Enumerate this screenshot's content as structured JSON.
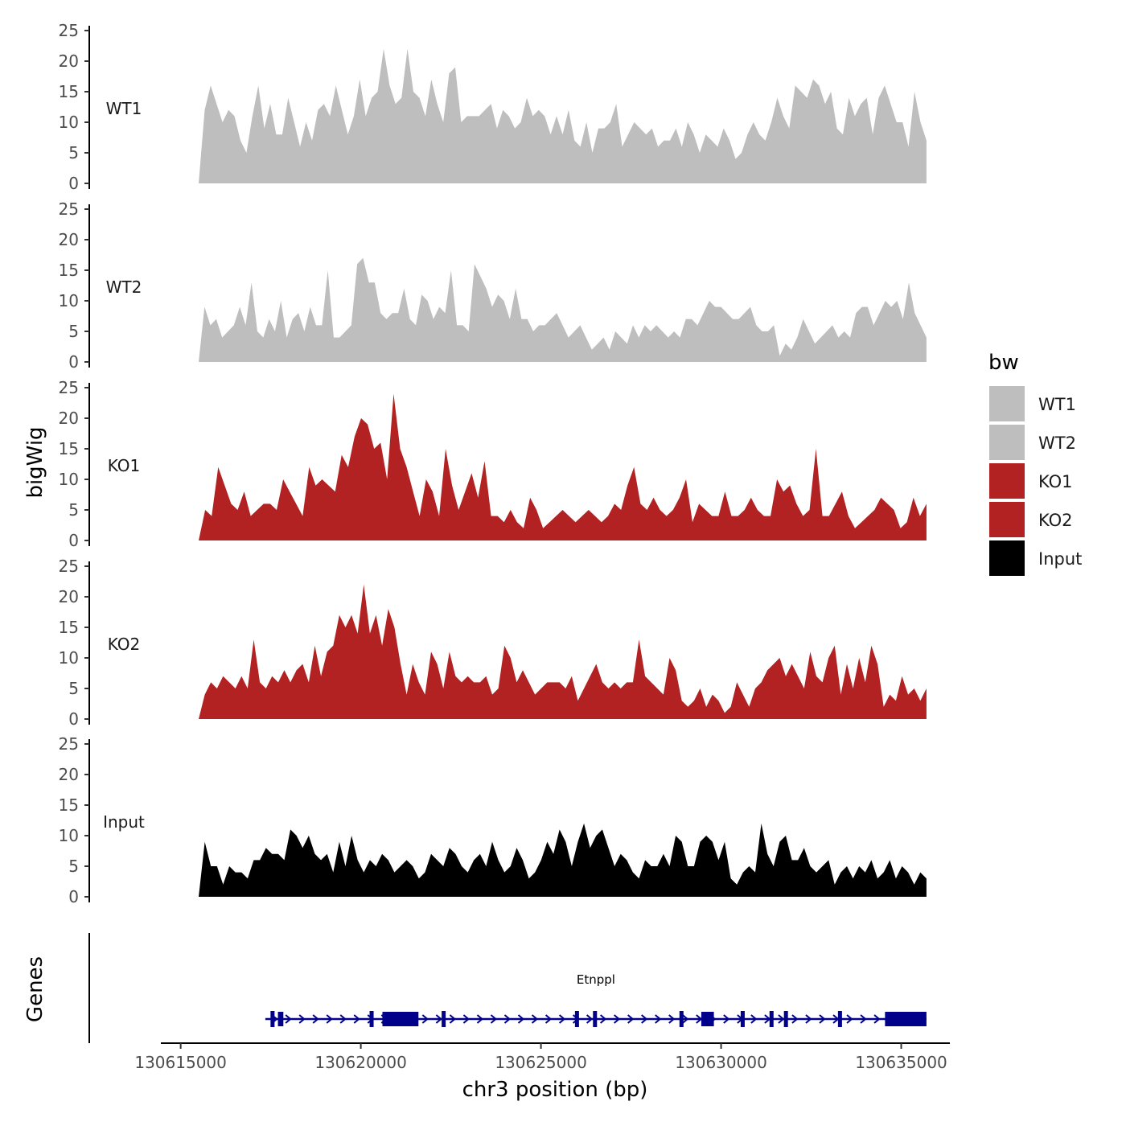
{
  "chart_data": {
    "type": "area",
    "ylabel": "bigWig",
    "xlabel": "chr3 position (bp)",
    "genes_label": "Genes",
    "ylim": [
      0,
      25
    ],
    "y_ticks": [
      0,
      5,
      10,
      15,
      20,
      25
    ],
    "x_ticks": [
      130615000,
      130620000,
      130625000,
      130630000,
      130635000
    ],
    "xlim": [
      130614450,
      130636350
    ],
    "x_range": [
      130615500,
      130635700
    ],
    "series": [
      {
        "name": "WT1",
        "color": "#BEBEBE",
        "values": [
          0,
          12,
          16,
          13,
          10,
          12,
          11,
          7,
          5,
          11,
          16,
          9,
          13,
          8,
          8,
          14,
          10,
          6,
          10,
          7,
          12,
          13,
          11,
          16,
          12,
          8,
          11,
          17,
          11,
          14,
          15,
          22,
          16,
          13,
          14,
          22,
          15,
          14,
          11,
          17,
          13,
          10,
          18,
          19,
          10,
          11,
          11,
          11,
          12,
          13,
          9,
          12,
          11,
          9,
          10,
          14,
          11,
          12,
          11,
          8,
          11,
          8,
          12,
          7,
          6,
          10,
          5,
          9,
          9,
          10,
          13,
          6,
          8,
          10,
          9,
          8,
          9,
          6,
          7,
          7,
          9,
          6,
          10,
          8,
          5,
          8,
          7,
          6,
          9,
          7,
          4,
          5,
          8,
          10,
          8,
          7,
          10,
          14,
          11,
          9,
          16,
          15,
          14,
          17,
          16,
          13,
          15,
          9,
          8,
          14,
          11,
          13,
          14,
          8,
          14,
          16,
          13,
          10,
          10,
          6,
          15,
          10,
          7
        ]
      },
      {
        "name": "WT2",
        "color": "#BEBEBE",
        "values": [
          0,
          9,
          6,
          7,
          4,
          5,
          6,
          9,
          6,
          13,
          5,
          4,
          7,
          5,
          10,
          4,
          7,
          8,
          5,
          9,
          6,
          6,
          15,
          4,
          4,
          5,
          6,
          16,
          17,
          13,
          13,
          8,
          7,
          8,
          8,
          12,
          7,
          6,
          11,
          10,
          7,
          9,
          8,
          15,
          6,
          6,
          5,
          16,
          14,
          12,
          9,
          11,
          10,
          7,
          12,
          7,
          7,
          5,
          6,
          6,
          7,
          8,
          6,
          4,
          5,
          6,
          4,
          2,
          3,
          4,
          2,
          5,
          4,
          3,
          6,
          4,
          6,
          5,
          6,
          5,
          4,
          5,
          4,
          7,
          7,
          6,
          8,
          10,
          9,
          9,
          8,
          7,
          7,
          8,
          9,
          6,
          5,
          5,
          6,
          1,
          3,
          2,
          4,
          7,
          5,
          3,
          4,
          5,
          6,
          4,
          5,
          4,
          8,
          9,
          9,
          6,
          8,
          10,
          9,
          10,
          7,
          13,
          8,
          6,
          4
        ]
      },
      {
        "name": "KO1",
        "color": "#B22222",
        "values": [
          0,
          5,
          4,
          12,
          9,
          6,
          5,
          8,
          4,
          5,
          6,
          6,
          5,
          10,
          8,
          6,
          4,
          12,
          9,
          10,
          9,
          8,
          14,
          12,
          17,
          20,
          19,
          15,
          16,
          10,
          24,
          15,
          12,
          8,
          4,
          10,
          8,
          4,
          15,
          9,
          5,
          8,
          11,
          7,
          13,
          4,
          4,
          3,
          5,
          3,
          2,
          7,
          5,
          2,
          3,
          4,
          5,
          4,
          3,
          4,
          5,
          4,
          3,
          4,
          6,
          5,
          9,
          12,
          6,
          5,
          7,
          5,
          4,
          5,
          7,
          10,
          3,
          6,
          5,
          4,
          4,
          8,
          4,
          4,
          5,
          7,
          5,
          4,
          4,
          10,
          8,
          9,
          6,
          4,
          5,
          15,
          4,
          4,
          6,
          8,
          4,
          2,
          3,
          4,
          5,
          7,
          6,
          5,
          2,
          3,
          7,
          4,
          6
        ]
      },
      {
        "name": "KO2",
        "color": "#B22222",
        "values": [
          0,
          4,
          6,
          5,
          7,
          6,
          5,
          7,
          5,
          13,
          6,
          5,
          7,
          6,
          8,
          6,
          8,
          9,
          6,
          12,
          7,
          11,
          12,
          17,
          15,
          17,
          14,
          22,
          14,
          17,
          12,
          18,
          15,
          9,
          4,
          9,
          6,
          4,
          11,
          9,
          5,
          11,
          7,
          6,
          7,
          6,
          6,
          7,
          4,
          5,
          12,
          10,
          6,
          8,
          6,
          4,
          5,
          6,
          6,
          6,
          5,
          7,
          3,
          5,
          7,
          9,
          6,
          5,
          6,
          5,
          6,
          6,
          13,
          7,
          6,
          5,
          4,
          10,
          8,
          3,
          2,
          3,
          5,
          2,
          4,
          3,
          1,
          2,
          6,
          4,
          2,
          5,
          6,
          8,
          9,
          10,
          7,
          9,
          7,
          5,
          11,
          7,
          6,
          10,
          12,
          4,
          9,
          5,
          10,
          6,
          12,
          9,
          2,
          4,
          3,
          7,
          4,
          5,
          3,
          5
        ]
      },
      {
        "name": "Input",
        "color": "#000000",
        "values": [
          0,
          9,
          5,
          5,
          2,
          5,
          4,
          4,
          3,
          6,
          6,
          8,
          7,
          7,
          6,
          11,
          10,
          8,
          10,
          7,
          6,
          7,
          4,
          9,
          5,
          10,
          6,
          4,
          6,
          5,
          7,
          6,
          4,
          5,
          6,
          5,
          3,
          4,
          7,
          6,
          5,
          8,
          7,
          5,
          4,
          6,
          7,
          5,
          9,
          6,
          4,
          5,
          8,
          6,
          3,
          4,
          6,
          9,
          7,
          11,
          9,
          5,
          9,
          12,
          8,
          10,
          11,
          8,
          5,
          7,
          6,
          4,
          3,
          6,
          5,
          5,
          7,
          5,
          10,
          9,
          5,
          5,
          9,
          10,
          9,
          6,
          9,
          3,
          2,
          4,
          5,
          4,
          12,
          7,
          5,
          9,
          10,
          6,
          6,
          8,
          5,
          4,
          5,
          6,
          2,
          4,
          5,
          3,
          5,
          4,
          6,
          3,
          4,
          6,
          3,
          5,
          4,
          2,
          4,
          3
        ]
      }
    ],
    "gene": {
      "name": "Etnppl",
      "start": 130617350,
      "end": 130635700,
      "utr_blocks": [
        [
          130617700,
          130617850
        ],
        [
          130620600,
          130621600
        ],
        [
          130629450,
          130629800
        ],
        [
          130634550,
          130635700
        ]
      ],
      "exons": [
        130617550,
        130620300,
        130622300,
        130626000,
        130626500,
        130628900,
        130630600,
        130631400,
        130631800,
        130633300
      ],
      "color": "#00008B"
    }
  },
  "legend": {
    "title": "bw",
    "items": [
      {
        "label": "WT1",
        "color": "#BEBEBE"
      },
      {
        "label": "WT2",
        "color": "#BEBEBE"
      },
      {
        "label": "KO1",
        "color": "#B22222"
      },
      {
        "label": "KO2",
        "color": "#B22222"
      },
      {
        "label": "Input",
        "color": "#000000"
      }
    ]
  }
}
